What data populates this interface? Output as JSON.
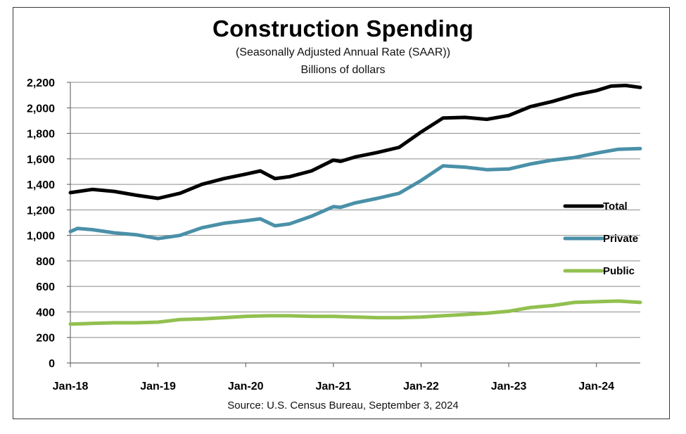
{
  "title": "Construction  Spending",
  "subtitle": "(Seasonally Adjusted Annual Rate (SAAR))",
  "ylabel": "Billions of dollars",
  "source": "Source: U.S. Census Bureau, September 3, 2024",
  "chart_data": {
    "type": "line",
    "title": "Construction  Spending",
    "subtitle": "(Seasonally Adjusted Annual Rate (SAAR))",
    "ylabel": "Billions of dollars",
    "xlabel": "",
    "ylim": [
      0,
      2200
    ],
    "yticks": [
      0,
      200,
      400,
      600,
      800,
      1000,
      1200,
      1400,
      1600,
      1800,
      2000,
      2200
    ],
    "ytick_labels": [
      "0",
      "200",
      "400",
      "600",
      "800",
      "1,000",
      "1,200",
      "1,400",
      "1,600",
      "1,800",
      "2,000",
      "2,200"
    ],
    "xticks": [
      "2018-01",
      "2019-01",
      "2020-01",
      "2021-01",
      "2022-01",
      "2023-01",
      "2024-01"
    ],
    "xtick_labels": [
      "Jan-18",
      "Jan-19",
      "Jan-20",
      "Jan-21",
      "Jan-22",
      "Jan-23",
      "Jan-24"
    ],
    "xlim": [
      "2018-01",
      "2024-07"
    ],
    "grid": "horizontal",
    "legend_position": "right",
    "series": [
      {
        "name": "Total",
        "color": "#000000",
        "points": [
          [
            "2018-01",
            1335
          ],
          [
            "2018-04",
            1360
          ],
          [
            "2018-07",
            1345
          ],
          [
            "2018-10",
            1315
          ],
          [
            "2019-01",
            1290
          ],
          [
            "2019-04",
            1330
          ],
          [
            "2019-07",
            1400
          ],
          [
            "2019-10",
            1445
          ],
          [
            "2020-01",
            1480
          ],
          [
            "2020-03",
            1505
          ],
          [
            "2020-05",
            1445
          ],
          [
            "2020-07",
            1460
          ],
          [
            "2020-10",
            1505
          ],
          [
            "2021-01",
            1590
          ],
          [
            "2021-02",
            1580
          ],
          [
            "2021-04",
            1615
          ],
          [
            "2021-07",
            1650
          ],
          [
            "2021-10",
            1690
          ],
          [
            "2022-01",
            1810
          ],
          [
            "2022-04",
            1920
          ],
          [
            "2022-07",
            1925
          ],
          [
            "2022-10",
            1910
          ],
          [
            "2023-01",
            1940
          ],
          [
            "2023-04",
            2010
          ],
          [
            "2023-07",
            2050
          ],
          [
            "2023-10",
            2100
          ],
          [
            "2024-01",
            2135
          ],
          [
            "2024-03",
            2170
          ],
          [
            "2024-05",
            2175
          ],
          [
            "2024-07",
            2160
          ]
        ]
      },
      {
        "name": "Private",
        "color": "#4a90a8",
        "points": [
          [
            "2018-01",
            1030
          ],
          [
            "2018-02",
            1055
          ],
          [
            "2018-04",
            1045
          ],
          [
            "2018-07",
            1020
          ],
          [
            "2018-10",
            1005
          ],
          [
            "2019-01",
            975
          ],
          [
            "2019-04",
            1000
          ],
          [
            "2019-07",
            1060
          ],
          [
            "2019-10",
            1095
          ],
          [
            "2020-01",
            1115
          ],
          [
            "2020-03",
            1130
          ],
          [
            "2020-05",
            1075
          ],
          [
            "2020-07",
            1090
          ],
          [
            "2020-10",
            1150
          ],
          [
            "2021-01",
            1225
          ],
          [
            "2021-02",
            1220
          ],
          [
            "2021-04",
            1255
          ],
          [
            "2021-07",
            1290
          ],
          [
            "2021-10",
            1330
          ],
          [
            "2022-01",
            1430
          ],
          [
            "2022-04",
            1545
          ],
          [
            "2022-07",
            1535
          ],
          [
            "2022-10",
            1515
          ],
          [
            "2023-01",
            1520
          ],
          [
            "2023-04",
            1560
          ],
          [
            "2023-07",
            1590
          ],
          [
            "2023-10",
            1610
          ],
          [
            "2024-01",
            1645
          ],
          [
            "2024-04",
            1675
          ],
          [
            "2024-07",
            1680
          ]
        ]
      },
      {
        "name": "Public",
        "color": "#92c050",
        "points": [
          [
            "2018-01",
            305
          ],
          [
            "2018-04",
            310
          ],
          [
            "2018-07",
            315
          ],
          [
            "2018-10",
            315
          ],
          [
            "2019-01",
            320
          ],
          [
            "2019-04",
            340
          ],
          [
            "2019-07",
            345
          ],
          [
            "2019-10",
            355
          ],
          [
            "2020-01",
            365
          ],
          [
            "2020-04",
            370
          ],
          [
            "2020-07",
            370
          ],
          [
            "2020-10",
            365
          ],
          [
            "2021-01",
            365
          ],
          [
            "2021-04",
            360
          ],
          [
            "2021-07",
            355
          ],
          [
            "2021-10",
            355
          ],
          [
            "2022-01",
            360
          ],
          [
            "2022-04",
            370
          ],
          [
            "2022-07",
            380
          ],
          [
            "2022-10",
            390
          ],
          [
            "2023-01",
            405
          ],
          [
            "2023-04",
            435
          ],
          [
            "2023-07",
            450
          ],
          [
            "2023-10",
            475
          ],
          [
            "2024-01",
            480
          ],
          [
            "2024-04",
            485
          ],
          [
            "2024-07",
            475
          ]
        ]
      }
    ]
  }
}
